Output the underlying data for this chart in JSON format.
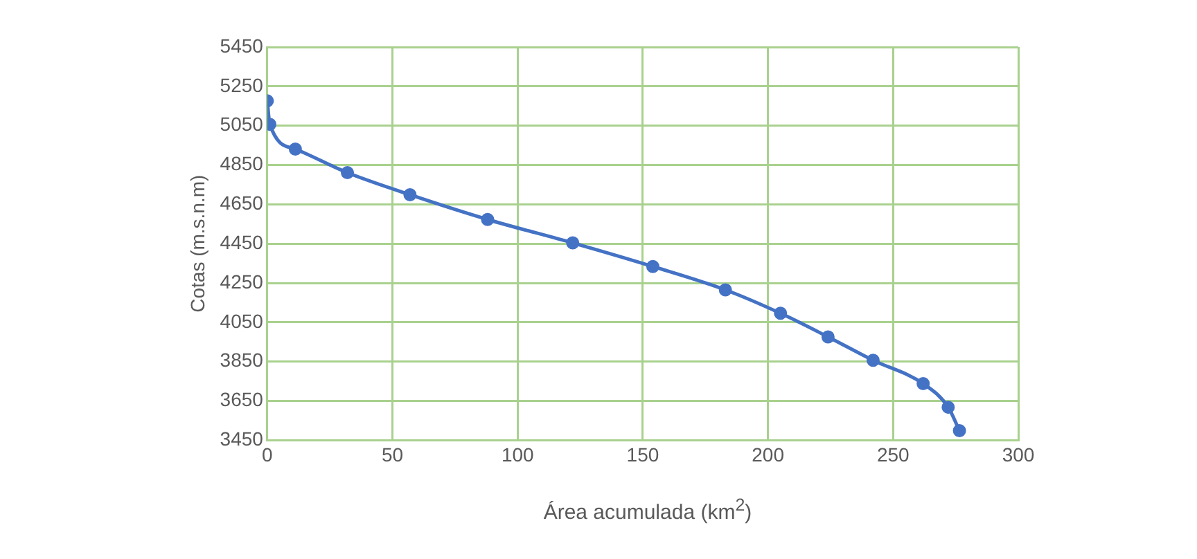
{
  "chart_data": {
    "type": "line",
    "xlabel": "Área acumulada (km$^{2}$)",
    "ylabel": "Cotas (m.s.n.m)",
    "x": [
      0,
      1,
      11.2,
      32,
      57,
      88,
      122,
      154,
      183,
      205,
      224,
      242,
      262,
      272,
      276.5
    ],
    "series": [
      {
        "color": "#4472c4",
        "values": [
          5176,
          5057,
          4931,
          4811,
          4699,
          4573,
          4454,
          4334,
          4215,
          4096,
          3976,
          3857,
          3738,
          3618,
          3499
        ]
      }
    ],
    "xlim": [
      0,
      300
    ],
    "xticks": [
      0,
      50,
      100,
      150,
      200,
      250,
      300
    ],
    "ylim": [
      3450,
      5450
    ],
    "yticks": [
      3450,
      3650,
      3850,
      4050,
      4250,
      4450,
      4650,
      4850,
      5050,
      5250,
      5450
    ],
    "grid": true,
    "legend": false,
    "marker": "circle",
    "line_style": "solid"
  }
}
